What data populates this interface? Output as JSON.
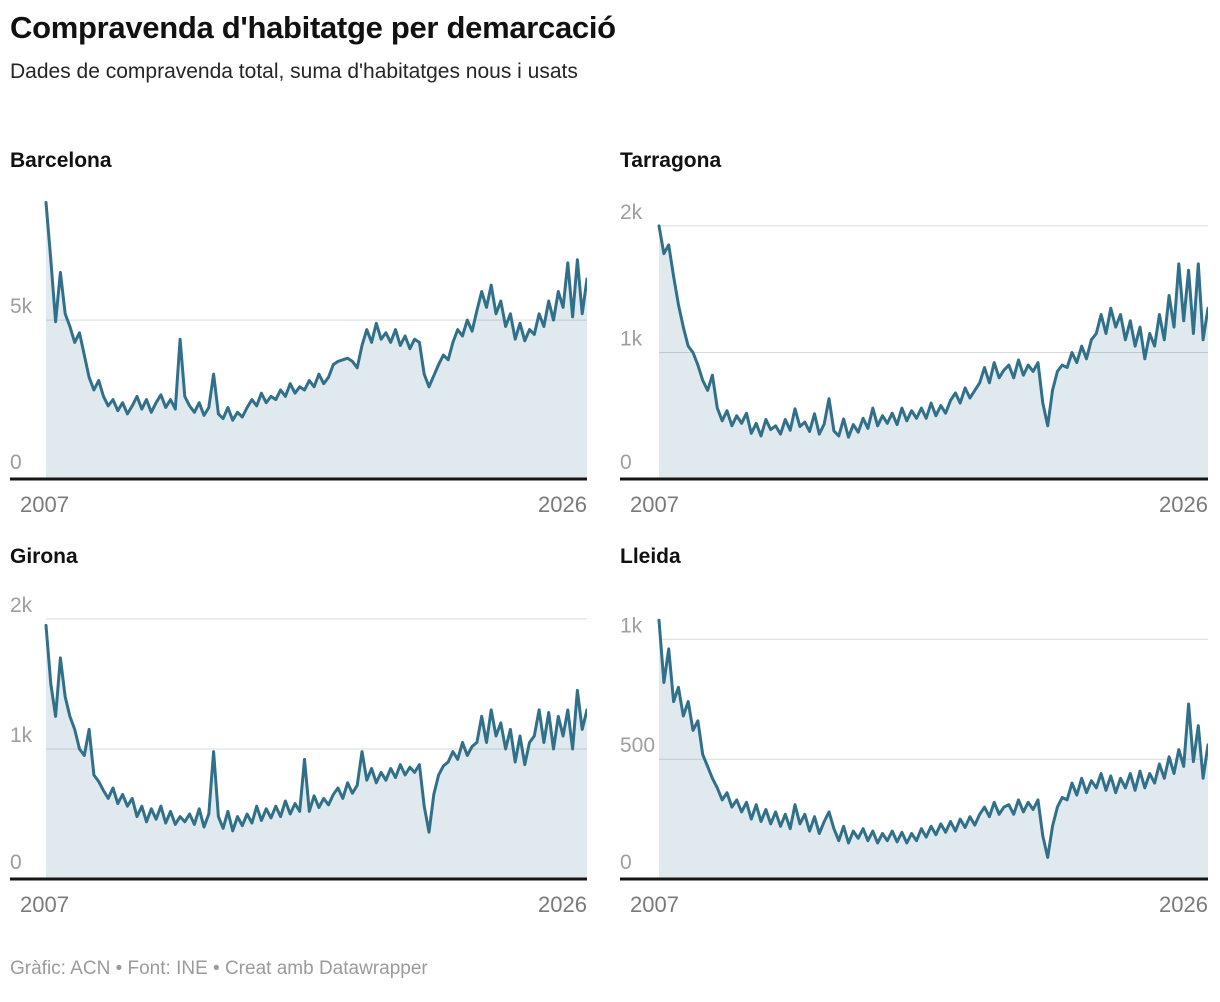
{
  "header": {
    "title": "Compravenda d'habitatge per demarcació",
    "subtitle": "Dades de compravenda total, suma d'habitatges nous i usats"
  },
  "footer": {
    "text": "Gràfic: ACN • Font: INE • Creat amb Datawrapper"
  },
  "style": {
    "line_color": "#31708a",
    "area_color": "#31708a",
    "area_opacity": 0.15,
    "grid_color": "#d9d9d9",
    "axis_color": "#161616",
    "ytick_color": "#9e9e9e",
    "xtick_color": "#7a7a7a"
  },
  "chart_data": [
    {
      "type": "area",
      "title": "Barcelona",
      "xlabels": [
        "2007",
        "2026"
      ],
      "x_range": [
        2007,
        2026
      ],
      "ymax": 9000,
      "yticks": [
        {
          "value": 5000,
          "label": "5k",
          "grid": true
        },
        {
          "value": 0,
          "label": "0",
          "grid": false
        }
      ],
      "values": [
        8700,
        6900,
        4950,
        6500,
        5200,
        4800,
        4300,
        4600,
        3900,
        3200,
        2800,
        3100,
        2600,
        2300,
        2500,
        2150,
        2400,
        2050,
        2300,
        2600,
        2200,
        2500,
        2100,
        2400,
        2650,
        2250,
        2500,
        2200,
        4400,
        2600,
        2300,
        2100,
        2400,
        2000,
        2250,
        3300,
        2050,
        1900,
        2250,
        1850,
        2100,
        1950,
        2250,
        2500,
        2300,
        2700,
        2400,
        2600,
        2500,
        2800,
        2600,
        3000,
        2700,
        2900,
        2800,
        3100,
        2900,
        3300,
        3000,
        3200,
        3600,
        3700,
        3750,
        3800,
        3700,
        3500,
        4200,
        4700,
        4300,
        4900,
        4400,
        4600,
        4300,
        4700,
        4200,
        4500,
        4100,
        4400,
        4300,
        3300,
        2900,
        3250,
        3600,
        3900,
        3750,
        4300,
        4700,
        4500,
        5000,
        4650,
        5300,
        5900,
        5400,
        6100,
        5200,
        5600,
        4800,
        5200,
        4400,
        4900,
        4350,
        4700,
        4550,
        5200,
        4800,
        5600,
        5000,
        5900,
        5400,
        6800,
        5100,
        6900,
        5200,
        6300
      ]
    },
    {
      "type": "area",
      "title": "Tarragona",
      "xlabels": [
        "2007",
        "2026"
      ],
      "x_range": [
        2007,
        2026
      ],
      "ymax": 2260,
      "yticks": [
        {
          "value": 2000,
          "label": "2k",
          "grid": true
        },
        {
          "value": 1000,
          "label": "1k",
          "grid": true
        },
        {
          "value": 0,
          "label": "0",
          "grid": false
        }
      ],
      "values": [
        2000,
        1780,
        1850,
        1600,
        1380,
        1200,
        1050,
        1000,
        900,
        780,
        700,
        820,
        560,
        460,
        540,
        420,
        500,
        440,
        520,
        360,
        440,
        340,
        470,
        390,
        420,
        355,
        470,
        385,
        555,
        415,
        450,
        375,
        515,
        355,
        435,
        635,
        380,
        340,
        475,
        330,
        430,
        370,
        480,
        400,
        560,
        420,
        500,
        440,
        520,
        430,
        560,
        460,
        540,
        480,
        560,
        480,
        600,
        500,
        580,
        520,
        620,
        680,
        600,
        720,
        640,
        700,
        760,
        880,
        760,
        920,
        800,
        860,
        900,
        800,
        940,
        820,
        900,
        850,
        920,
        600,
        420,
        700,
        850,
        900,
        880,
        1000,
        920,
        1050,
        950,
        1100,
        1150,
        1300,
        1150,
        1350,
        1200,
        1300,
        1100,
        1250,
        1050,
        1200,
        950,
        1150,
        1050,
        1300,
        1100,
        1450,
        1200,
        1700,
        1250,
        1650,
        1150,
        1700,
        1100,
        1350
      ]
    },
    {
      "type": "area",
      "title": "Girona",
      "xlabels": [
        "2007",
        "2026"
      ],
      "x_range": [
        2007,
        2026
      ],
      "ymax": 2230,
      "yticks": [
        {
          "value": 2000,
          "label": "2k",
          "grid": true
        },
        {
          "value": 1000,
          "label": "1k",
          "grid": true
        },
        {
          "value": 0,
          "label": "0",
          "grid": false
        }
      ],
      "values": [
        1950,
        1500,
        1250,
        1700,
        1400,
        1250,
        1150,
        1000,
        950,
        1150,
        800,
        750,
        680,
        620,
        700,
        580,
        650,
        560,
        620,
        480,
        560,
        440,
        540,
        460,
        560,
        430,
        520,
        420,
        480,
        440,
        500,
        420,
        540,
        400,
        500,
        980,
        480,
        390,
        520,
        370,
        480,
        410,
        500,
        430,
        560,
        450,
        540,
        470,
        560,
        480,
        600,
        500,
        580,
        520,
        920,
        520,
        640,
        550,
        620,
        570,
        650,
        700,
        620,
        740,
        660,
        720,
        980,
        760,
        850,
        740,
        820,
        760,
        850,
        780,
        880,
        800,
        860,
        820,
        880,
        560,
        360,
        650,
        800,
        870,
        900,
        980,
        920,
        1050,
        950,
        1020,
        1050,
        1250,
        1050,
        1300,
        1100,
        1200,
        1000,
        1150,
        900,
        1100,
        880,
        1050,
        1100,
        1300,
        1050,
        1280,
        1000,
        1250,
        1100,
        1300,
        1000,
        1450,
        1150,
        1300
      ]
    },
    {
      "type": "area",
      "title": "Lleida",
      "xlabels": [
        "2007",
        "2026"
      ],
      "x_range": [
        2007,
        2026
      ],
      "ymax": 1210,
      "yticks": [
        {
          "value": 1000,
          "label": "1k",
          "grid": true
        },
        {
          "value": 500,
          "label": "500",
          "grid": true
        },
        {
          "value": 0,
          "label": "0",
          "grid": false
        }
      ],
      "values": [
        1080,
        820,
        960,
        740,
        800,
        680,
        740,
        620,
        660,
        520,
        470,
        420,
        380,
        330,
        360,
        300,
        330,
        280,
        320,
        250,
        310,
        240,
        290,
        230,
        280,
        220,
        270,
        210,
        310,
        230,
        270,
        200,
        260,
        190,
        240,
        280,
        210,
        160,
        220,
        150,
        200,
        170,
        210,
        160,
        200,
        150,
        190,
        160,
        200,
        155,
        195,
        150,
        190,
        160,
        210,
        175,
        220,
        185,
        230,
        195,
        240,
        200,
        250,
        215,
        260,
        225,
        270,
        300,
        260,
        320,
        270,
        300,
        310,
        270,
        330,
        280,
        320,
        290,
        330,
        180,
        90,
        220,
        300,
        340,
        330,
        400,
        350,
        420,
        360,
        410,
        380,
        440,
        370,
        430,
        360,
        420,
        380,
        440,
        370,
        450,
        380,
        440,
        400,
        480,
        420,
        510,
        440,
        540,
        470,
        730,
        490,
        640,
        420,
        560
      ]
    }
  ]
}
